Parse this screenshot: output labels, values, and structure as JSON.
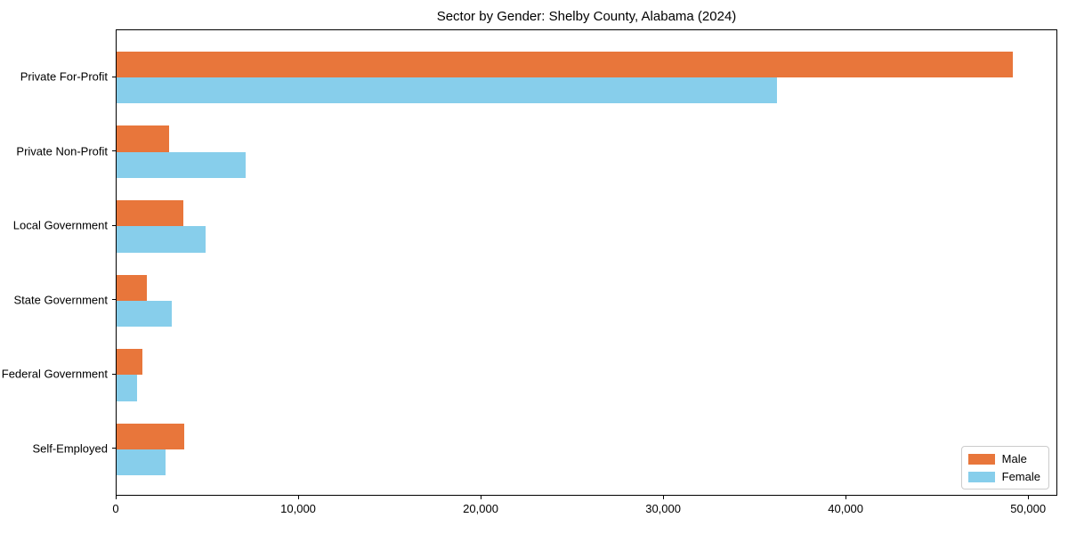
{
  "chart_data": {
    "type": "bar",
    "orientation": "horizontal",
    "title": "Sector by Gender: Shelby County, Alabama (2024)",
    "categories": [
      "Private For-Profit",
      "Private Non-Profit",
      "Local Government",
      "State Government",
      "Federal Government",
      "Self-Employed"
    ],
    "series": [
      {
        "name": "Male",
        "color": "#E8763B",
        "values": [
          49100,
          2870,
          3680,
          1680,
          1400,
          3720
        ]
      },
      {
        "name": "Female",
        "color": "#87CEEB",
        "values": [
          36200,
          7080,
          4900,
          3010,
          1110,
          2660
        ]
      }
    ],
    "xlabel": "",
    "ylabel": "",
    "xlim": [
      0,
      51600
    ],
    "xticks": [
      0,
      10000,
      20000,
      30000,
      40000,
      50000
    ],
    "xtick_labels": [
      "0",
      "10,000",
      "20,000",
      "30,000",
      "40,000",
      "50,000"
    ],
    "legend": {
      "position": "lower-right",
      "entries": [
        "Male",
        "Female"
      ]
    },
    "grid": false,
    "axis_color": "#000000",
    "background": "#ffffff"
  }
}
